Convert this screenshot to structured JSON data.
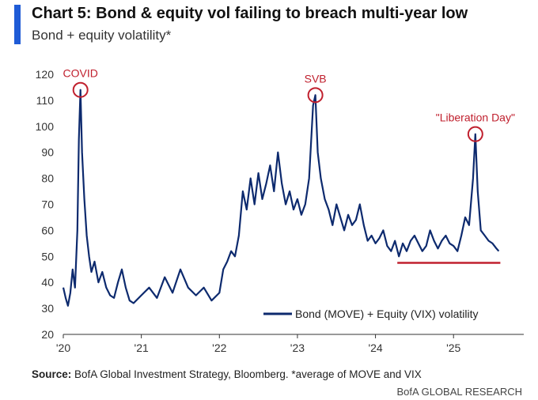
{
  "header": {
    "title": "Chart 5: Bond & equity vol failing to breach multi-year low",
    "subtitle": "Bond + equity volatility*"
  },
  "footer": {
    "source_label": "Source:",
    "source_text": "BofA Global Investment Strategy, Bloomberg. *average of MOVE and VIX",
    "brand": "BofA GLOBAL RESEARCH"
  },
  "colors": {
    "accent": "#1f5bd6",
    "series": "#0d2a6e",
    "annotation": "#c0202e"
  },
  "chart_data": {
    "type": "line",
    "title": "Chart 5: Bond & equity vol failing to breach multi-year low",
    "subtitle": "Bond + equity volatility*",
    "xlabel": "",
    "ylabel": "",
    "x_tick_labels": [
      "'20",
      "'21",
      "'22",
      "'23",
      "'24",
      "'25"
    ],
    "x_tick_years": [
      2020,
      2021,
      2022,
      2023,
      2024,
      2025
    ],
    "xlim": [
      2020.0,
      2025.9
    ],
    "ylim": [
      20,
      120
    ],
    "y_ticks": [
      20,
      30,
      40,
      50,
      60,
      70,
      80,
      90,
      100,
      110,
      120
    ],
    "grid": false,
    "legend_position": "bottom-right",
    "series": [
      {
        "name": "Bond (MOVE) + Equity (VIX) volatility",
        "x": [
          2020.0,
          2020.03,
          2020.06,
          2020.09,
          2020.12,
          2020.15,
          2020.18,
          2020.2,
          2020.22,
          2020.24,
          2020.27,
          2020.3,
          2020.33,
          2020.36,
          2020.4,
          2020.45,
          2020.5,
          2020.55,
          2020.6,
          2020.65,
          2020.7,
          2020.75,
          2020.8,
          2020.85,
          2020.9,
          2021.0,
          2021.1,
          2021.2,
          2021.3,
          2021.4,
          2021.5,
          2021.6,
          2021.7,
          2021.8,
          2021.9,
          2022.0,
          2022.05,
          2022.1,
          2022.15,
          2022.2,
          2022.25,
          2022.3,
          2022.35,
          2022.4,
          2022.45,
          2022.5,
          2022.55,
          2022.6,
          2022.65,
          2022.7,
          2022.75,
          2022.8,
          2022.85,
          2022.9,
          2022.95,
          2023.0,
          2023.05,
          2023.1,
          2023.15,
          2023.2,
          2023.23,
          2023.26,
          2023.3,
          2023.35,
          2023.4,
          2023.45,
          2023.5,
          2023.55,
          2023.6,
          2023.65,
          2023.7,
          2023.75,
          2023.8,
          2023.85,
          2023.9,
          2023.95,
          2024.0,
          2024.05,
          2024.1,
          2024.15,
          2024.2,
          2024.25,
          2024.3,
          2024.35,
          2024.4,
          2024.45,
          2024.5,
          2024.55,
          2024.6,
          2024.65,
          2024.7,
          2024.75,
          2024.8,
          2024.85,
          2024.9,
          2024.95,
          2025.0,
          2025.05,
          2025.1,
          2025.15,
          2025.2,
          2025.25,
          2025.28,
          2025.31,
          2025.35,
          2025.4,
          2025.45,
          2025.5,
          2025.55,
          2025.58
        ],
        "values": [
          38,
          34,
          31,
          36,
          45,
          38,
          60,
          95,
          114,
          90,
          72,
          58,
          50,
          44,
          48,
          40,
          44,
          38,
          35,
          34,
          40,
          45,
          38,
          33,
          32,
          35,
          38,
          34,
          42,
          36,
          45,
          38,
          35,
          38,
          33,
          36,
          45,
          48,
          52,
          50,
          58,
          75,
          68,
          80,
          70,
          82,
          72,
          78,
          85,
          75,
          90,
          78,
          70,
          75,
          68,
          72,
          66,
          70,
          80,
          108,
          112,
          90,
          80,
          72,
          68,
          62,
          70,
          65,
          60,
          66,
          62,
          64,
          70,
          62,
          56,
          58,
          55,
          57,
          60,
          54,
          52,
          56,
          50,
          55,
          52,
          56,
          58,
          55,
          52,
          54,
          60,
          56,
          53,
          56,
          58,
          55,
          54,
          52,
          58,
          65,
          62,
          80,
          97,
          75,
          60,
          58,
          56,
          55,
          53,
          52
        ]
      }
    ],
    "annotations": [
      {
        "label": "COVID",
        "x": 2020.22,
        "y": 114
      },
      {
        "label": "SVB",
        "x": 2023.23,
        "y": 112
      },
      {
        "label": "\"Liberation Day\"",
        "x": 2025.28,
        "y": 97
      }
    ],
    "reference_line": {
      "y": 47.5,
      "x_start": 2024.28,
      "x_end": 2025.6
    }
  }
}
